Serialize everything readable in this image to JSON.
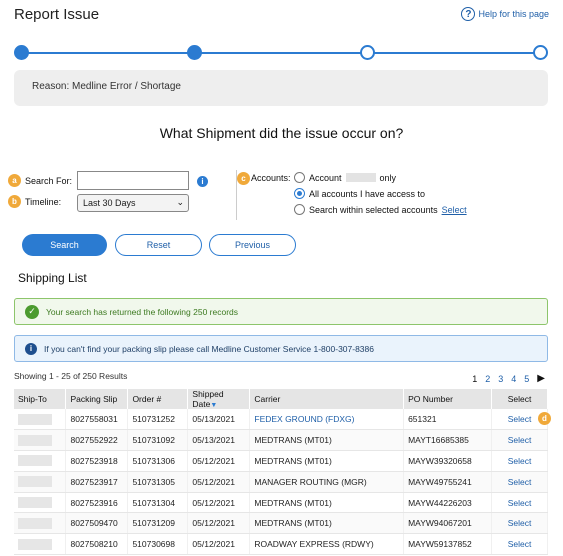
{
  "page": {
    "title": "Report Issue",
    "help_label": "Help for this page",
    "help_icon": "question-circle-icon"
  },
  "stepper": {
    "steps": [
      {
        "state": "done"
      },
      {
        "state": "done"
      },
      {
        "state": "todo"
      },
      {
        "state": "todo"
      }
    ],
    "accent": "#2b7bd1"
  },
  "reason": {
    "text": "Reason: Medline Error / Shortage"
  },
  "question": "What Shipment did the issue occur on?",
  "search_form": {
    "badges": {
      "a": "a",
      "b": "b",
      "c": "c",
      "d": "d"
    },
    "search_for_label": "Search For:",
    "search_value": "",
    "search_placeholder": "",
    "info_icon": "info-icon",
    "timeline_label": "Timeline:",
    "timeline_value": "Last 30 Days",
    "accounts_label": "Accounts:",
    "account_options": [
      {
        "prefix": "Account",
        "suffix": "only",
        "selected": false
      },
      {
        "label": "All accounts I have access to",
        "selected": true
      },
      {
        "label": "Search within selected accounts",
        "link": "Select",
        "selected": false
      }
    ]
  },
  "buttons": {
    "search": "Search",
    "reset": "Reset",
    "previous": "Previous"
  },
  "shipping_list": {
    "title": "Shipping List",
    "success_message": "Your search has returned the following 250 records",
    "notice_message": "If you can't find your packing slip please call Medline Customer Service 1-800-307-8386",
    "showing": "Showing 1 - 25 of 250 Results",
    "pages": [
      "1",
      "2",
      "3",
      "4",
      "5"
    ],
    "current_page": "1",
    "next_icon": "play-right-icon",
    "columns": {
      "ship_to": "Ship-To",
      "packing_slip": "Packing Slip",
      "order": "Order #",
      "shipped_date": "Shipped Date",
      "carrier": "Carrier",
      "po_number": "PO Number",
      "select": "Select"
    },
    "rows": [
      {
        "packing_slip": "8027558031",
        "order": "510731252",
        "date": "05/13/2021",
        "carrier": "FEDEX GROUND (FDXG)",
        "carrier_link": true,
        "po": "651321",
        "select": "Select"
      },
      {
        "packing_slip": "8027552922",
        "order": "510731092",
        "date": "05/13/2021",
        "carrier": "MEDTRANS (MT01)",
        "carrier_link": false,
        "po": "MAYT16685385",
        "select": "Select"
      },
      {
        "packing_slip": "8027523918",
        "order": "510731306",
        "date": "05/12/2021",
        "carrier": "MEDTRANS (MT01)",
        "carrier_link": false,
        "po": "MAYW39320658",
        "select": "Select"
      },
      {
        "packing_slip": "8027523917",
        "order": "510731305",
        "date": "05/12/2021",
        "carrier": "MANAGER ROUTING (MGR)",
        "carrier_link": false,
        "po": "MAYW49755241",
        "select": "Select"
      },
      {
        "packing_slip": "8027523916",
        "order": "510731304",
        "date": "05/12/2021",
        "carrier": "MEDTRANS (MT01)",
        "carrier_link": false,
        "po": "MAYW44226203",
        "select": "Select"
      },
      {
        "packing_slip": "8027509470",
        "order": "510731209",
        "date": "05/12/2021",
        "carrier": "MEDTRANS (MT01)",
        "carrier_link": false,
        "po": "MAYW94067201",
        "select": "Select"
      },
      {
        "packing_slip": "8027508210",
        "order": "510730698",
        "date": "05/12/2021",
        "carrier": "ROADWAY EXPRESS (RDWY)",
        "carrier_link": false,
        "po": "MAYW59137852",
        "select": "Select"
      }
    ]
  }
}
